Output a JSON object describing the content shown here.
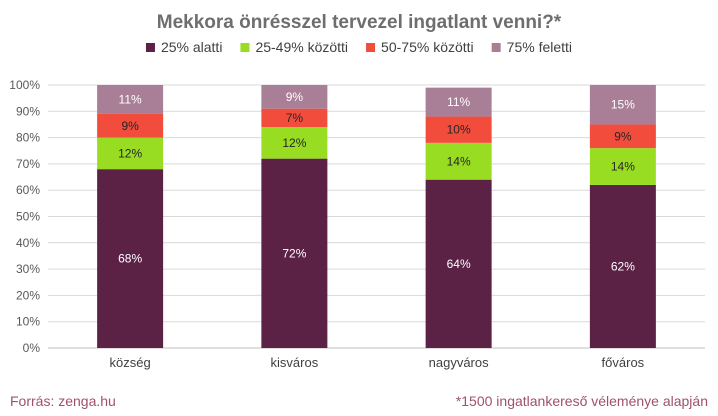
{
  "chart_data": {
    "type": "bar",
    "stacked": true,
    "title": "Mekkora önrésszel tervezel ingatlant venni?*",
    "categories": [
      "község",
      "kisváros",
      "nagyváros",
      "főváros"
    ],
    "series": [
      {
        "name": "25% alatti",
        "color": "#5b2245",
        "values": [
          68,
          72,
          64,
          62
        ],
        "labels": [
          "68%",
          "72%",
          "64%",
          "62%"
        ]
      },
      {
        "name": "25-49% közötti",
        "color": "#99dd22",
        "values": [
          12,
          12,
          14,
          14
        ],
        "labels": [
          "12%",
          "12%",
          "14%",
          "14%"
        ]
      },
      {
        "name": "50-75% közötti",
        "color": "#f24c3d",
        "values": [
          9,
          7,
          10,
          9
        ],
        "labels": [
          "9%",
          "7%",
          "10%",
          "9%"
        ]
      },
      {
        "name": "75% feletti",
        "color": "#a87f97",
        "values": [
          11,
          9,
          11,
          15
        ],
        "labels": [
          "11%",
          "9%",
          "11%",
          "15%"
        ]
      }
    ],
    "ylim": [
      0,
      100
    ],
    "yticks": [
      "0%",
      "10%",
      "20%",
      "30%",
      "40%",
      "50%",
      "60%",
      "70%",
      "80%",
      "90%",
      "100%"
    ],
    "grid": true,
    "legend_position": "top"
  },
  "footer": {
    "source": "Forrás: zenga.hu",
    "note": "*1500 ingatlankereső véleménye alapján"
  }
}
